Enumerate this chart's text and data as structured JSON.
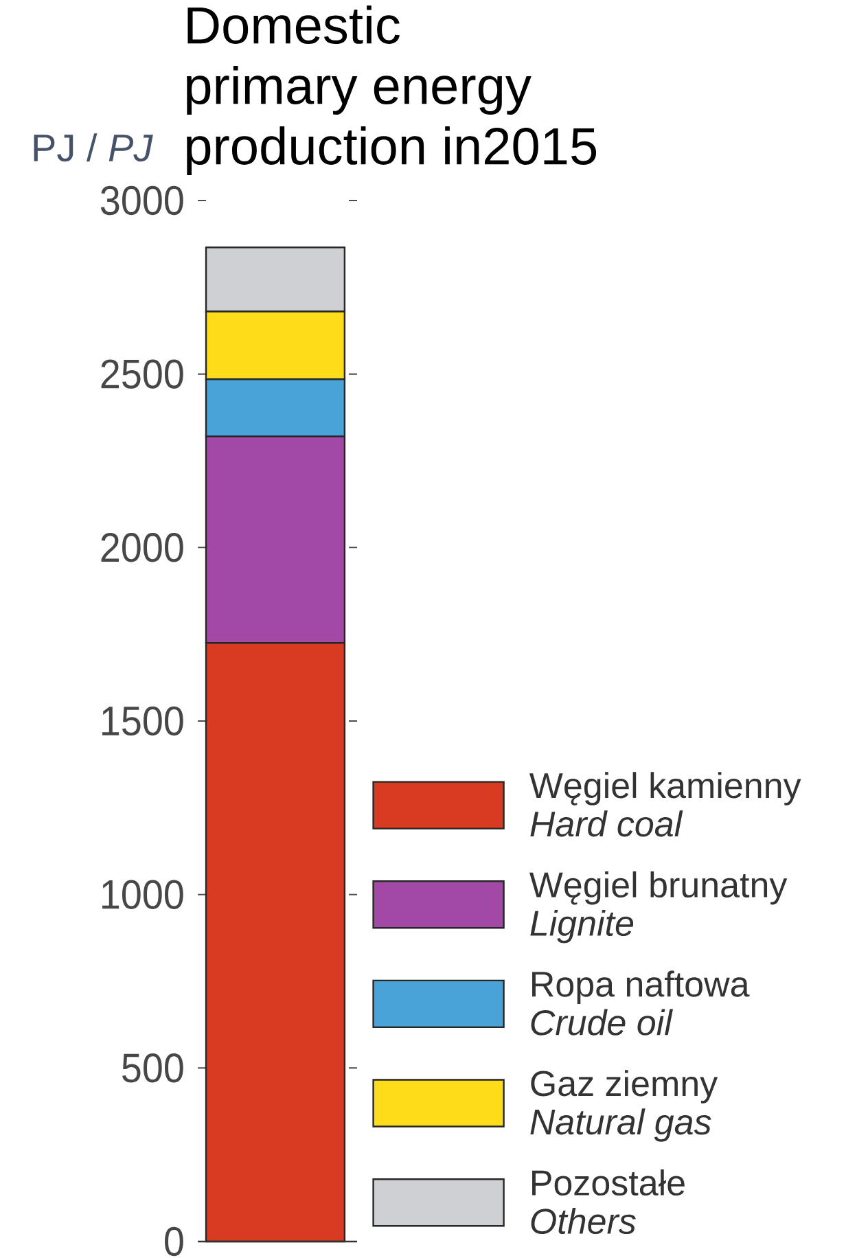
{
  "chart_data": {
    "type": "bar",
    "title": "Domestic\nprimary energy\nproduction in2015",
    "ylabel": "PJ / *PJ*",
    "categories": [
      null
    ],
    "stacked": true,
    "series": [
      {
        "name": "Węgiel kamienny\n*Hard coal*",
        "color": "#d83a22",
        "values": [
          1725
        ]
      },
      {
        "name": "Węgiel  brunatny\n*Lignite*",
        "color": "#a249a6",
        "values": [
          595
        ]
      },
      {
        "name": "Ropa naftowa\n*Crude oil*",
        "color": "#49a3d8",
        "values": [
          165
        ]
      },
      {
        "name": "Gaz ziemny\n*Natural gas*",
        "color": "#fedc1a",
        "values": [
          195
        ]
      },
      {
        "name": "Pozostałe\n*Others*",
        "color": "#cfd0d4",
        "values": [
          185
        ]
      }
    ],
    "ylim": [
      0,
      3000
    ],
    "yticks": [
      0,
      500,
      1000,
      1500,
      2000,
      2500,
      3000
    ],
    "tick_labels": "y",
    "legend": "bottom right"
  }
}
